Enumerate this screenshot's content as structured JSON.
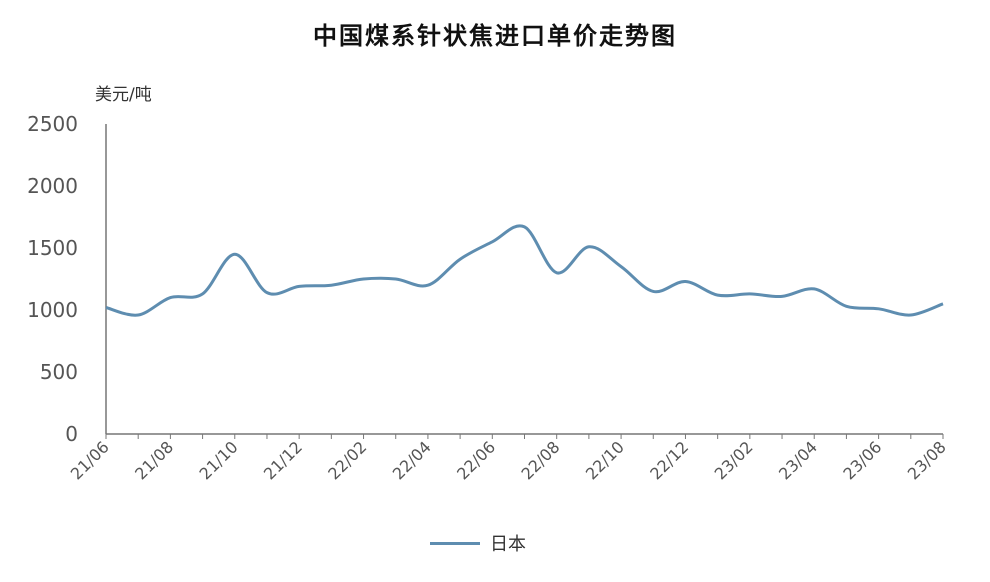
{
  "chart_data": {
    "type": "line",
    "title": "中国煤系针状焦进口单价走势图",
    "ylabel": "美元/吨",
    "xlabel": "",
    "ylim": [
      0,
      2500
    ],
    "yticks": [
      0,
      500,
      1000,
      1500,
      2000,
      2500
    ],
    "grid": false,
    "legend_position": "bottom-center",
    "series_color": "#5e8db0",
    "x": [
      "21/06",
      "21/07",
      "21/08",
      "21/09",
      "21/10",
      "21/11",
      "21/12",
      "22/01",
      "22/02",
      "22/03",
      "22/04",
      "22/05",
      "22/06",
      "22/07",
      "22/08",
      "22/09",
      "22/10",
      "22/11",
      "22/12",
      "23/01",
      "23/02",
      "23/03",
      "23/04",
      "23/05",
      "23/06",
      "23/07",
      "23/08"
    ],
    "x_tick_labels": [
      "21/06",
      "21/08",
      "21/10",
      "21/12",
      "22/02",
      "22/04",
      "22/06",
      "22/08",
      "22/10",
      "22/12",
      "23/02",
      "23/04",
      "23/06",
      "23/08"
    ],
    "series": [
      {
        "name": "日本",
        "values": [
          1020,
          960,
          1100,
          1130,
          1450,
          1140,
          1190,
          1200,
          1250,
          1250,
          1200,
          1410,
          1550,
          1670,
          1300,
          1510,
          1350,
          1150,
          1230,
          1120,
          1130,
          1110,
          1170,
          1030,
          1010,
          960,
          1050
        ]
      }
    ]
  }
}
